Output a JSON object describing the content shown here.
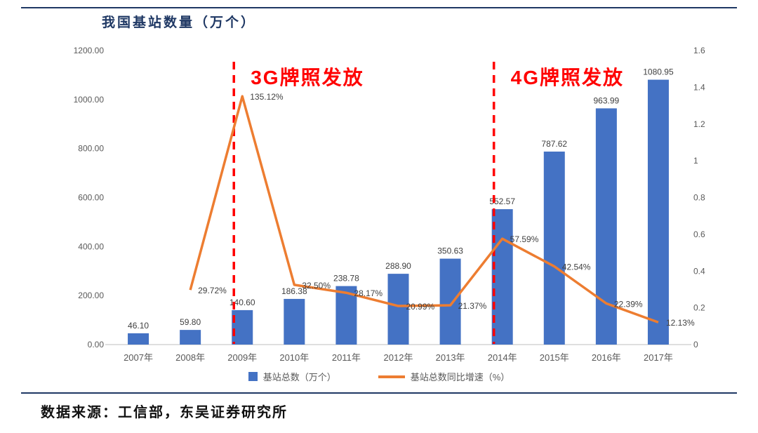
{
  "page": {
    "title": "我国基站数量（万个）",
    "source": "数据来源：工信部，东吴证券研究所"
  },
  "legend": [
    {
      "label": "基站总数（万个）",
      "type": "bar",
      "color": "#4472C4"
    },
    {
      "label": "基站总数同比增速（%）",
      "type": "line",
      "color": "#ED7D31"
    }
  ],
  "chart_data": {
    "type": "bar+line",
    "title": "我国基站数量（万个）",
    "categories": [
      "2007年",
      "2008年",
      "2009年",
      "2010年",
      "2011年",
      "2012年",
      "2013年",
      "2014年",
      "2015年",
      "2016年",
      "2017年"
    ],
    "series": [
      {
        "name": "基站总数（万个）",
        "type": "bar",
        "axis": "left",
        "color": "#4472C4",
        "values": [
          46.1,
          59.8,
          140.6,
          186.38,
          238.78,
          288.9,
          350.63,
          552.57,
          787.62,
          963.99,
          1080.95
        ],
        "labels": [
          "46.10",
          "59.80",
          "140.60",
          "186.38",
          "238.78",
          "288.90",
          "350.63",
          "552.57",
          "787.62",
          "963.99",
          "1080.95"
        ]
      },
      {
        "name": "基站总数同比增速（%）",
        "type": "line",
        "axis": "right",
        "color": "#ED7D31",
        "values": [
          null,
          0.2972,
          1.3512,
          0.325,
          0.2817,
          0.2099,
          0.2137,
          0.5759,
          0.4254,
          0.2239,
          0.1213
        ],
        "labels": [
          null,
          "29.72%",
          "135.12%",
          "32.50%",
          "28.17%",
          "20.99%",
          "21.37%",
          "57.59%",
          "42.54%",
          "22.39%",
          "12.13%"
        ]
      }
    ],
    "left_axis": {
      "min": 0,
      "max": 1200,
      "ticks": [
        "0.00",
        "200.00",
        "400.00",
        "600.00",
        "800.00",
        "1000.00",
        "1200.00"
      ]
    },
    "right_axis": {
      "min": 0,
      "max": 1.6,
      "ticks": [
        "0",
        "0.2",
        "0.4",
        "0.6",
        "0.8",
        "1",
        "1.2",
        "1.4",
        "1.6"
      ]
    },
    "annotations": [
      {
        "text": "3G牌照发放",
        "category_index": 2,
        "color": "#FF0000"
      },
      {
        "text": "4G牌照发放",
        "category_index": 7,
        "color": "#FF0000"
      }
    ],
    "grid": false,
    "legend_position": "bottom"
  }
}
